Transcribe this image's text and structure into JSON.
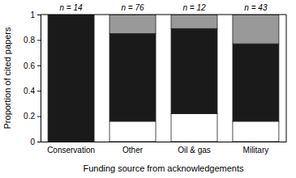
{
  "chart_data": {
    "type": "bar",
    "stacked": true,
    "xlabel": "Funding source from acknowledgements",
    "ylabel": "Proportion of cited papers",
    "categories": [
      "Conservation",
      "Other",
      "Oil & gas",
      "Military"
    ],
    "annotations": [
      "n = 14",
      "n = 76",
      "n = 12",
      "n = 43"
    ],
    "series": [
      {
        "color": "#ffffff",
        "values": [
          0,
          0.16,
          0.22,
          0.16
        ]
      },
      {
        "color": "#1a1a1a",
        "values": [
          1.0,
          0.69,
          0.67,
          0.61
        ]
      },
      {
        "color": "#999999",
        "values": [
          0,
          0.15,
          0.11,
          0.23
        ]
      }
    ],
    "ylim": [
      0,
      1
    ],
    "yticks": [
      0,
      0.2,
      0.4,
      0.6,
      0.8,
      1
    ],
    "grid": false
  }
}
